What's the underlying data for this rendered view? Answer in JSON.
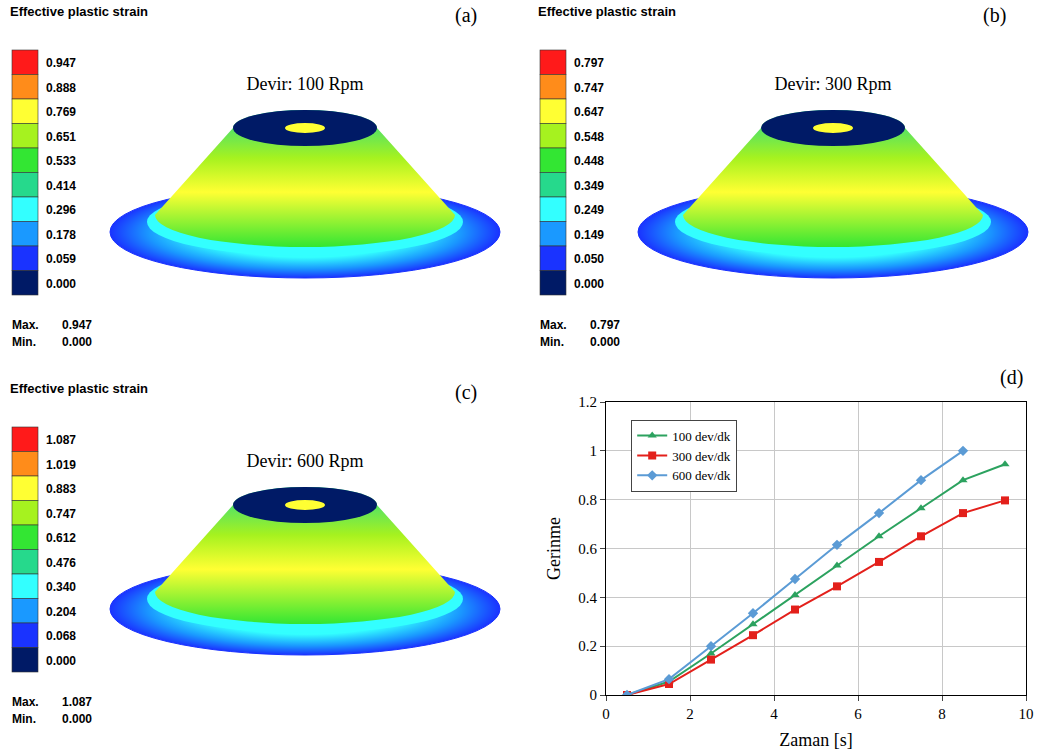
{
  "panels": [
    {
      "letter": "(a)",
      "title": "Effective plastic strain",
      "label": "Devir: 100 Rpm",
      "legend_labels": [
        "0.947",
        "0.888",
        "0.769",
        "0.651",
        "0.533",
        "0.414",
        "0.296",
        "0.178",
        "0.059",
        "0.000"
      ],
      "colors": [
        "#ff1a1a",
        "#ff8c1a",
        "#ffff33",
        "#a6f21f",
        "#33e633",
        "#26d98c",
        "#33ffff",
        "#1a99ff",
        "#1a33ff",
        "#001a66"
      ],
      "max_label": "Max.",
      "max": "0.947",
      "min_label": "Min.",
      "min": "0.000"
    },
    {
      "letter": "(b)",
      "title": "Effective plastic strain",
      "label": "Devir: 300 Rpm",
      "legend_labels": [
        "0.797",
        "0.747",
        "0.647",
        "0.548",
        "0.448",
        "0.349",
        "0.249",
        "0.149",
        "0.050",
        "0.000"
      ],
      "colors": [
        "#ff1a1a",
        "#ff8c1a",
        "#ffff33",
        "#a6f21f",
        "#33e633",
        "#26d98c",
        "#33ffff",
        "#1a99ff",
        "#1a33ff",
        "#001a66"
      ],
      "max_label": "Max.",
      "max": "0.797",
      "min_label": "Min.",
      "min": "0.000"
    },
    {
      "letter": "(c)",
      "title": "Effective plastic strain",
      "label": "Devir: 600 Rpm",
      "legend_labels": [
        "1.087",
        "1.019",
        "0.883",
        "0.747",
        "0.612",
        "0.476",
        "0.340",
        "0.204",
        "0.068",
        "0.000"
      ],
      "colors": [
        "#ff1a1a",
        "#ff8c1a",
        "#ffff33",
        "#a6f21f",
        "#33e633",
        "#26d98c",
        "#33ffff",
        "#1a99ff",
        "#1a33ff",
        "#001a66"
      ],
      "max_label": "Max.",
      "max": "1.087",
      "min_label": "Min.",
      "min": "0.000"
    }
  ],
  "chart_data": {
    "type": "line",
    "letter": "(d)",
    "x_label": "Zaman [s]",
    "y_label": "Gerinme",
    "xlim": [
      0,
      10
    ],
    "xticks": [
      0,
      2,
      4,
      6,
      8,
      10
    ],
    "ylim": [
      0,
      1.2
    ],
    "yticks": [
      0,
      0.2,
      0.4,
      0.6,
      0.8,
      1,
      1.2
    ],
    "grid": true,
    "legend": "upper left",
    "series": [
      {
        "name": "100 dev/dk",
        "color": "#2ca25f",
        "marker": "triangle-up",
        "x": [
          0.5,
          1.5,
          2.5,
          3.5,
          4.5,
          5.5,
          6.5,
          7.5,
          8.5,
          9.5
        ],
        "values": [
          0,
          0.055,
          0.17,
          0.29,
          0.41,
          0.53,
          0.65,
          0.765,
          0.88,
          0.945
        ]
      },
      {
        "name": "300 dev/dk",
        "color": "#e3201b",
        "marker": "square",
        "x": [
          0.5,
          1.5,
          2.5,
          3.5,
          4.5,
          5.5,
          6.5,
          7.5,
          8.5,
          9.5
        ],
        "values": [
          0,
          0.045,
          0.145,
          0.245,
          0.35,
          0.445,
          0.545,
          0.65,
          0.745,
          0.797
        ]
      },
      {
        "name": "600 dev/dk",
        "color": "#5b9bd5",
        "marker": "diamond",
        "x": [
          0.5,
          1.5,
          2.5,
          3.5,
          4.5,
          5.5,
          6.5,
          7.5,
          8.5
        ],
        "values": [
          0,
          0.065,
          0.2,
          0.335,
          0.475,
          0.615,
          0.745,
          0.88,
          1.0
        ]
      }
    ]
  }
}
